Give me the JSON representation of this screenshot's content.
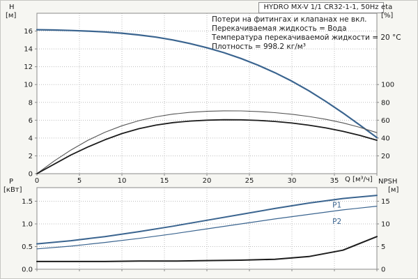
{
  "title_box": {
    "text": "HYDRO MX-V 1/1 CR32-1-1, 50Hz"
  },
  "annotations": {
    "line1": "Потери на фитингах и клапанах не вкл.",
    "line2": "Перекачиваемая жидкость = Вода",
    "line3": "Температура перекачиваемой жидкости = 20 °C",
    "line4": "Плотность = 998.2 кг/м³"
  },
  "axis_labels": {
    "h": "H",
    "h_unit": "[м]",
    "eta": "eta",
    "eta_unit": "[%]",
    "q": "Q [м³/ч]",
    "p": "P",
    "p_unit": "[кВт]",
    "npsh": "NPSH",
    "npsh_unit": "[м]"
  },
  "colors": {
    "blue": "#3a648f",
    "black": "#1c1c1c",
    "gray_curve": "#555555",
    "grid": "#bdbdbd",
    "frame": "#8a8a8a",
    "plot_bg": "#ffffff",
    "page_bg": "#f6f6f2"
  },
  "chart_data": [
    {
      "type": "line",
      "title": "HYDRO MX-V 1/1 CR32-1-1, 50Hz",
      "xlabel": "Q [м³/ч]",
      "ylabel_left": "H [м]",
      "ylabel_right": "eta [%]",
      "xlim": [
        0,
        40
      ],
      "ylim": [
        0,
        18
      ],
      "grid": true,
      "x_grid": [
        5,
        10,
        15,
        20,
        25,
        30,
        35
      ],
      "y_grid": [
        2,
        4,
        6,
        8,
        10,
        12,
        14,
        16
      ],
      "x_ticks": [
        {
          "v": 0,
          "label": "0"
        },
        {
          "v": 5,
          "label": "5"
        },
        {
          "v": 10,
          "label": "10"
        },
        {
          "v": 15,
          "label": "15"
        },
        {
          "v": 20,
          "label": "20"
        },
        {
          "v": 25,
          "label": "25"
        },
        {
          "v": 30,
          "label": "30"
        },
        {
          "v": 35,
          "label": "35"
        },
        {
          "v": 40,
          "label": ""
        }
      ],
      "y_ticks_left": [
        {
          "v": 0,
          "label": "0"
        },
        {
          "v": 2,
          "label": "2"
        },
        {
          "v": 4,
          "label": "4"
        },
        {
          "v": 6,
          "label": "6"
        },
        {
          "v": 8,
          "label": "8"
        },
        {
          "v": 10,
          "label": "10"
        },
        {
          "v": 12,
          "label": "12"
        },
        {
          "v": 14,
          "label": "14"
        },
        {
          "v": 16,
          "label": "16"
        }
      ],
      "y_ticks_right": [
        {
          "v": 2,
          "label": "20"
        },
        {
          "v": 4,
          "label": "40"
        },
        {
          "v": 6,
          "label": "60"
        },
        {
          "v": 8,
          "label": "80"
        },
        {
          "v": 10,
          "label": "100"
        }
      ],
      "series": [
        {
          "name": "H",
          "color": "blue",
          "width": 2.2,
          "x": [
            0,
            2,
            4,
            6,
            8,
            10,
            12,
            14,
            16,
            18,
            20,
            22,
            24,
            26,
            28,
            30,
            32,
            34,
            36,
            38,
            40
          ],
          "y": [
            16.15,
            16.12,
            16.07,
            16.0,
            15.9,
            15.76,
            15.57,
            15.32,
            15.0,
            14.6,
            14.13,
            13.58,
            12.93,
            12.18,
            11.33,
            10.38,
            9.3,
            8.1,
            6.82,
            5.45,
            4.05
          ]
        },
        {
          "name": "eta_pump",
          "color": "gray_curve",
          "width": 1.1,
          "x": [
            0,
            2,
            4,
            6,
            8,
            10,
            12,
            14,
            16,
            18,
            20,
            22,
            24,
            26,
            28,
            30,
            32,
            34,
            36,
            38,
            40
          ],
          "y": [
            0,
            1.4,
            2.65,
            3.75,
            4.65,
            5.38,
            5.95,
            6.38,
            6.68,
            6.88,
            7.0,
            7.05,
            7.04,
            6.97,
            6.85,
            6.67,
            6.42,
            6.1,
            5.7,
            5.2,
            4.6
          ]
        },
        {
          "name": "eta_system",
          "color": "black",
          "width": 1.8,
          "x": [
            0,
            2,
            4,
            6,
            8,
            10,
            12,
            14,
            16,
            18,
            20,
            22,
            24,
            26,
            28,
            30,
            32,
            34,
            36,
            38,
            40
          ],
          "y": [
            0,
            1.05,
            2.1,
            3.0,
            3.8,
            4.5,
            5.05,
            5.45,
            5.73,
            5.9,
            6.0,
            6.05,
            6.04,
            5.98,
            5.86,
            5.68,
            5.44,
            5.13,
            4.75,
            4.3,
            3.75
          ]
        }
      ]
    },
    {
      "type": "line",
      "title": "",
      "xlabel": "",
      "ylabel_left": "P [кВт]",
      "ylabel_right": "NPSH [м]",
      "xlim": [
        0,
        40
      ],
      "ylim": [
        0,
        1.8
      ],
      "grid": true,
      "x_grid": [
        5,
        10,
        15,
        20,
        25,
        30,
        35
      ],
      "y_grid": [
        0.5,
        1.0,
        1.5
      ],
      "x_ticks": [
        {
          "v": 0,
          "label": ""
        },
        {
          "v": 5,
          "label": ""
        },
        {
          "v": 10,
          "label": ""
        },
        {
          "v": 15,
          "label": ""
        },
        {
          "v": 20,
          "label": ""
        },
        {
          "v": 25,
          "label": ""
        },
        {
          "v": 30,
          "label": ""
        },
        {
          "v": 35,
          "label": ""
        },
        {
          "v": 40,
          "label": ""
        }
      ],
      "y_ticks_left": [
        {
          "v": 0,
          "label": "0.0"
        },
        {
          "v": 0.5,
          "label": "0.5"
        },
        {
          "v": 1.0,
          "label": "1.0"
        },
        {
          "v": 1.5,
          "label": "1.5"
        }
      ],
      "y_ticks_right": [
        {
          "v": 0,
          "label": "0"
        },
        {
          "v": 0.5,
          "label": "5"
        },
        {
          "v": 1.0,
          "label": "10"
        },
        {
          "v": 1.5,
          "label": "15"
        }
      ],
      "series": [
        {
          "name": "P1",
          "color": "blue",
          "width": 2,
          "x": [
            0,
            4,
            8,
            12,
            16,
            20,
            24,
            28,
            32,
            36,
            40
          ],
          "y": [
            0.56,
            0.63,
            0.72,
            0.83,
            0.95,
            1.08,
            1.21,
            1.34,
            1.46,
            1.56,
            1.63
          ],
          "label": {
            "text": "P1",
            "x": 35.3,
            "y": 1.36
          }
        },
        {
          "name": "P2",
          "color": "blue",
          "width": 1.2,
          "x": [
            0,
            4,
            8,
            12,
            16,
            20,
            24,
            28,
            32,
            36,
            40
          ],
          "y": [
            0.45,
            0.51,
            0.59,
            0.68,
            0.78,
            0.89,
            1.0,
            1.11,
            1.21,
            1.31,
            1.39
          ],
          "label": {
            "text": "P2",
            "x": 35.3,
            "y": 1.0
          }
        },
        {
          "name": "NPSH",
          "color": "black",
          "width": 2,
          "x": [
            0,
            4,
            8,
            12,
            16,
            20,
            24,
            28,
            32,
            36,
            40
          ],
          "y": [
            0.17,
            0.17,
            0.17,
            0.18,
            0.18,
            0.19,
            0.2,
            0.22,
            0.28,
            0.42,
            0.72
          ]
        }
      ]
    }
  ]
}
